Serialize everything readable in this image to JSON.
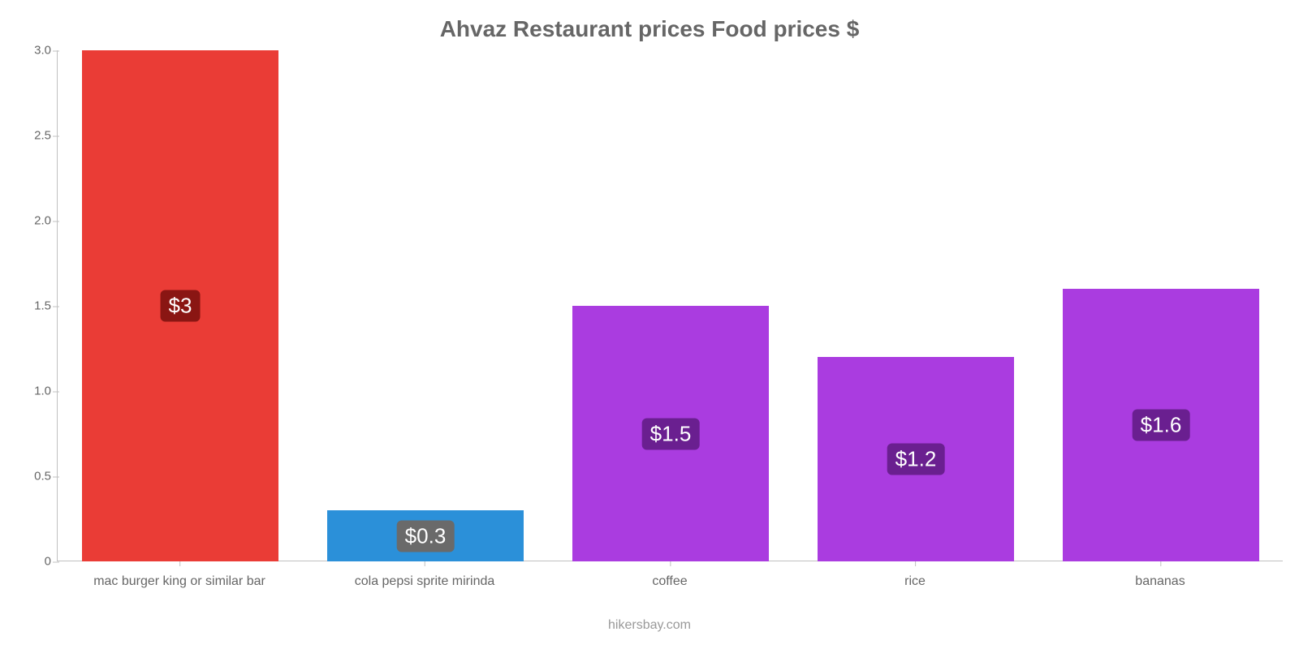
{
  "chart": {
    "type": "bar",
    "title": "Ahvaz Restaurant prices Food prices $",
    "title_color": "#666666",
    "title_fontsize": 28,
    "credit": "hikersbay.com",
    "credit_color": "#999999",
    "credit_fontsize": 16,
    "background_color": "#ffffff",
    "axis_color": "#c0c0c0",
    "tick_label_color": "#666666",
    "ylim": [
      0,
      3.0
    ],
    "ytick_step": 0.5,
    "yticks": [
      "0",
      "0.5",
      "1.0",
      "1.5",
      "2.0",
      "2.5",
      "3.0"
    ],
    "bar_width_ratio": 0.8,
    "categories": [
      "mac burger king or similar bar",
      "cola pepsi sprite mirinda",
      "coffee",
      "rice",
      "bananas"
    ],
    "values": [
      3.0,
      0.3,
      1.5,
      1.2,
      1.6
    ],
    "value_labels": [
      "$3",
      "$0.3",
      "$1.5",
      "$1.2",
      "$1.6"
    ],
    "bar_colors": [
      "#ea3c36",
      "#2b90d9",
      "#aa3ce0",
      "#aa3ce0",
      "#aa3ce0"
    ],
    "badge_colors": [
      "#8a1613",
      "#6a6a6a",
      "#6a1f90",
      "#6a1f90",
      "#6a1f90"
    ],
    "value_label_fontsize": 26,
    "xlabel_fontsize": 16
  }
}
